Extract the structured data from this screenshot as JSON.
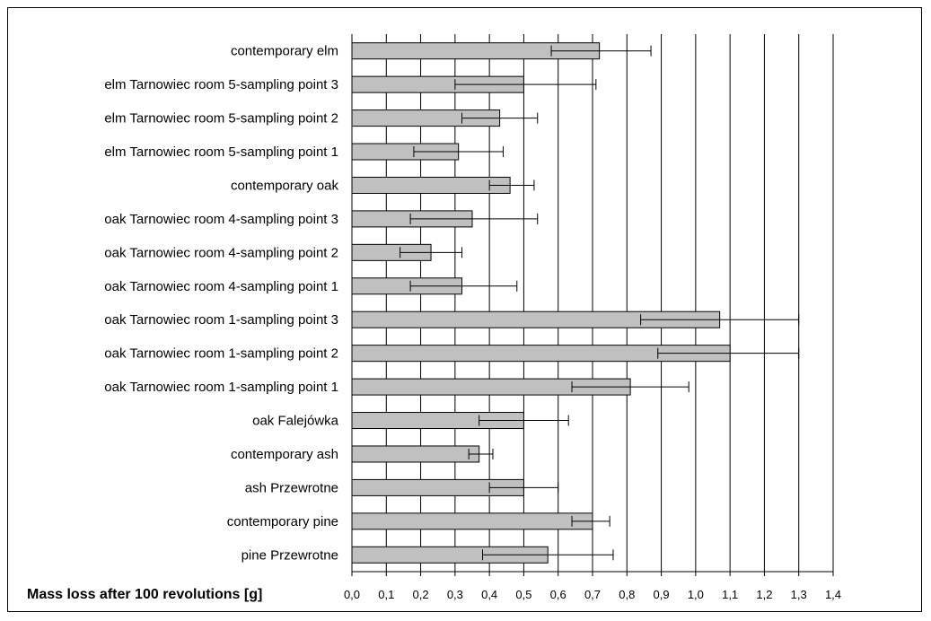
{
  "chart_data": {
    "type": "bar",
    "orientation": "horizontal",
    "title": "",
    "xlabel": "Mass loss after 100 revolutions [g]",
    "ylabel": "",
    "xlim": [
      0,
      1.4
    ],
    "xticks": [
      "0,0",
      "0,1",
      "0,2",
      "0,3",
      "0,4",
      "0,5",
      "0,6",
      "0,7",
      "0,8",
      "0,9",
      "1,0",
      "1,1",
      "1,2",
      "1,3",
      "1,4"
    ],
    "grid": "vertical",
    "bar_color": "#c0c0c0",
    "categories": [
      "contemporary elm",
      "elm Tarnowiec room 5-sampling point 3",
      "elm Tarnowiec room 5-sampling point 2",
      "elm Tarnowiec room 5-sampling point 1",
      "contemporary oak",
      "oak Tarnowiec room 4-sampling point 3",
      "oak Tarnowiec room 4-sampling point 2",
      "oak Tarnowiec room 4-sampling point 1",
      "oak Tarnowiec room 1-sampling point 3",
      "oak Tarnowiec room 1-sampling point 2",
      "oak Tarnowiec room 1-sampling point 1",
      "oak Falejówka",
      "contemporary ash",
      "ash Przewrotne",
      "contemporary pine",
      "pine Przewrotne"
    ],
    "values": [
      0.72,
      0.5,
      0.43,
      0.31,
      0.46,
      0.35,
      0.23,
      0.32,
      1.07,
      1.1,
      0.81,
      0.5,
      0.37,
      0.5,
      0.7,
      0.57
    ],
    "error_low": [
      0.58,
      0.3,
      0.32,
      0.18,
      0.4,
      0.17,
      0.14,
      0.17,
      0.84,
      0.89,
      0.64,
      0.37,
      0.34,
      0.4,
      0.64,
      0.38
    ],
    "error_high": [
      0.87,
      0.71,
      0.54,
      0.44,
      0.53,
      0.54,
      0.32,
      0.48,
      1.3,
      1.3,
      0.98,
      0.63,
      0.41,
      0.6,
      0.75,
      0.76
    ]
  }
}
